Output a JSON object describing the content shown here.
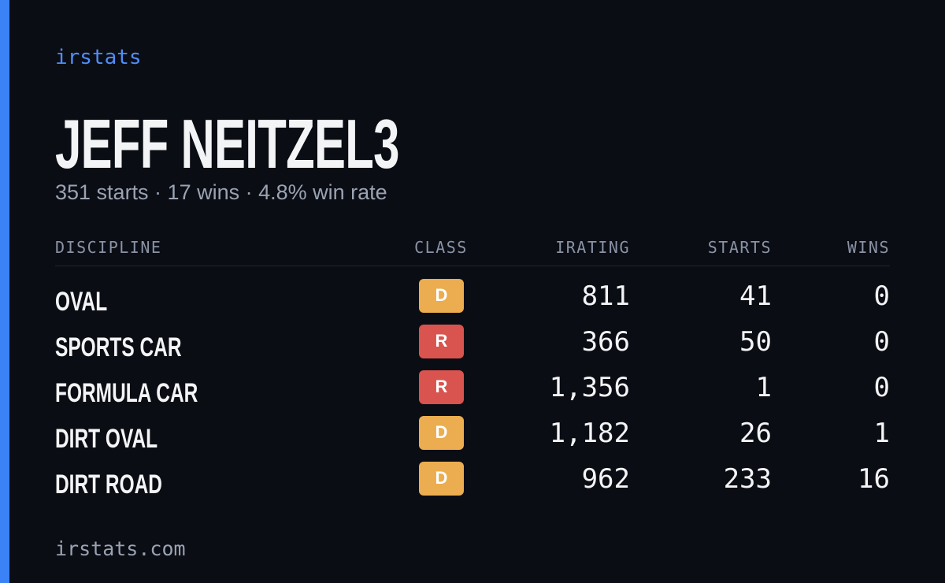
{
  "brand": "irstats",
  "title": "JEFF NEITZEL3",
  "subtitle": "351 starts · 17 wins · 4.8% win rate",
  "table": {
    "headers": [
      "DISCIPLINE",
      "CLASS",
      "IRATING",
      "STARTS",
      "WINS"
    ],
    "rows": [
      [
        "OVAL",
        "D",
        "811",
        "41",
        "0"
      ],
      [
        "SPORTS CAR",
        "R",
        "366",
        "50",
        "0"
      ],
      [
        "FORMULA CAR",
        "R",
        "1,356",
        "1",
        "0"
      ],
      [
        "DIRT OVAL",
        "D",
        "1,182",
        "26",
        "1"
      ],
      [
        "DIRT ROAD",
        "D",
        "962",
        "233",
        "16"
      ]
    ],
    "class_colors": {
      "D": "#ebad4f",
      "R": "#d9534f"
    }
  },
  "footer": "irstats.com"
}
